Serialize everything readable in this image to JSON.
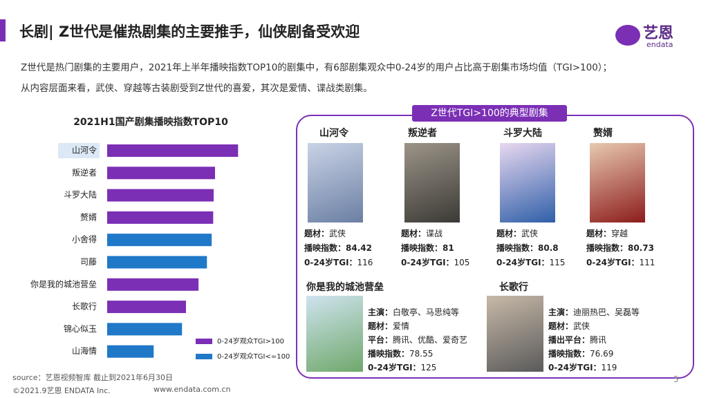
{
  "header": {
    "title": "长剧| Z世代是催热剧集的主要推手，仙侠剧备受欢迎",
    "logo": "艺恩",
    "logo_sub": "endata"
  },
  "intro": [
    "Z世代是热门剧集的主要用户，2021年上半年播映指数TOP10的剧集中，有6部剧集观众中0-24岁的用户占比高于剧集市场均值（TGI>100）；",
    "从内容层面来看，武侠、穿越等古装剧受到Z世代的喜爱，其次是爱情、谍战类剧集。"
  ],
  "chart_data": {
    "type": "hbar",
    "title": "2021H1国产剧集播映指数TOP10",
    "categories": [
      "山河令",
      "叛逆者",
      "斗罗大陆",
      "赘婿",
      "小舍得",
      "司藤",
      "你是我的城池营垒",
      "长歌行",
      "锦心似玉",
      "山海情"
    ],
    "series": [
      {
        "name": "0-24岁观众TGI>100",
        "color": "#7b2fb5",
        "values": [
          84.42,
          81,
          80.8,
          80.73,
          null,
          null,
          78.55,
          76.69,
          null,
          null
        ]
      },
      {
        "name": "0-24岁观众TGI<=100",
        "color": "#1f78c8",
        "values": [
          null,
          null,
          null,
          null,
          80.5,
          79.8,
          null,
          null,
          76.1,
          71.9
        ]
      }
    ],
    "xlim": [
      65,
      85
    ],
    "legend": "bottom-right"
  },
  "panel": {
    "title": "Z世代TGI>100的典型剧集",
    "top_cards": [
      {
        "name": "山河令",
        "rows": [
          [
            "题材：",
            "武侠"
          ],
          [
            "播映指数：",
            "84.42"
          ],
          [
            "0-24岁TGI：",
            "116"
          ]
        ]
      },
      {
        "name": "叛逆者",
        "rows": [
          [
            "题材：",
            "谍战"
          ],
          [
            "播映指数：",
            "81"
          ],
          [
            "0-24岁TGI：",
            "105"
          ]
        ]
      },
      {
        "name": "斗罗大陆",
        "rows": [
          [
            "题材：",
            "武侠"
          ],
          [
            "播映指数：",
            "80.8"
          ],
          [
            "0-24岁TGI：",
            "115"
          ]
        ]
      },
      {
        "name": "赘婿",
        "rows": [
          [
            "题材：",
            "穿越"
          ],
          [
            "播映指数：",
            "80.73"
          ],
          [
            "0-24岁TGI：",
            "111"
          ]
        ]
      }
    ],
    "bottom_cards": [
      {
        "name": "你是我的城池营垒",
        "rows": [
          [
            "主演：",
            "白敬亭、马思纯等"
          ],
          [
            "题材：",
            "爱情"
          ],
          [
            "平台：",
            "腾讯、优酷、爱奇艺"
          ],
          [
            "播映指数：",
            "78.55"
          ],
          [
            "0-24岁TGI：",
            "125"
          ]
        ]
      },
      {
        "name": "长歌行",
        "rows": [
          [
            "主演：",
            "迪丽热巴、吴磊等"
          ],
          [
            "题材：",
            "武侠"
          ],
          [
            "播出平台：",
            "腾讯"
          ],
          [
            "播映指数：",
            "76.69"
          ],
          [
            "0-24岁TGI：",
            "119"
          ]
        ]
      }
    ]
  },
  "footer": {
    "source": "source：艺恩视频智库    截止到2021年6月30日",
    "copyright": "©2021.9艺恩 ENDATA Inc.",
    "url": "www.endata.com.cn",
    "page": "5"
  }
}
